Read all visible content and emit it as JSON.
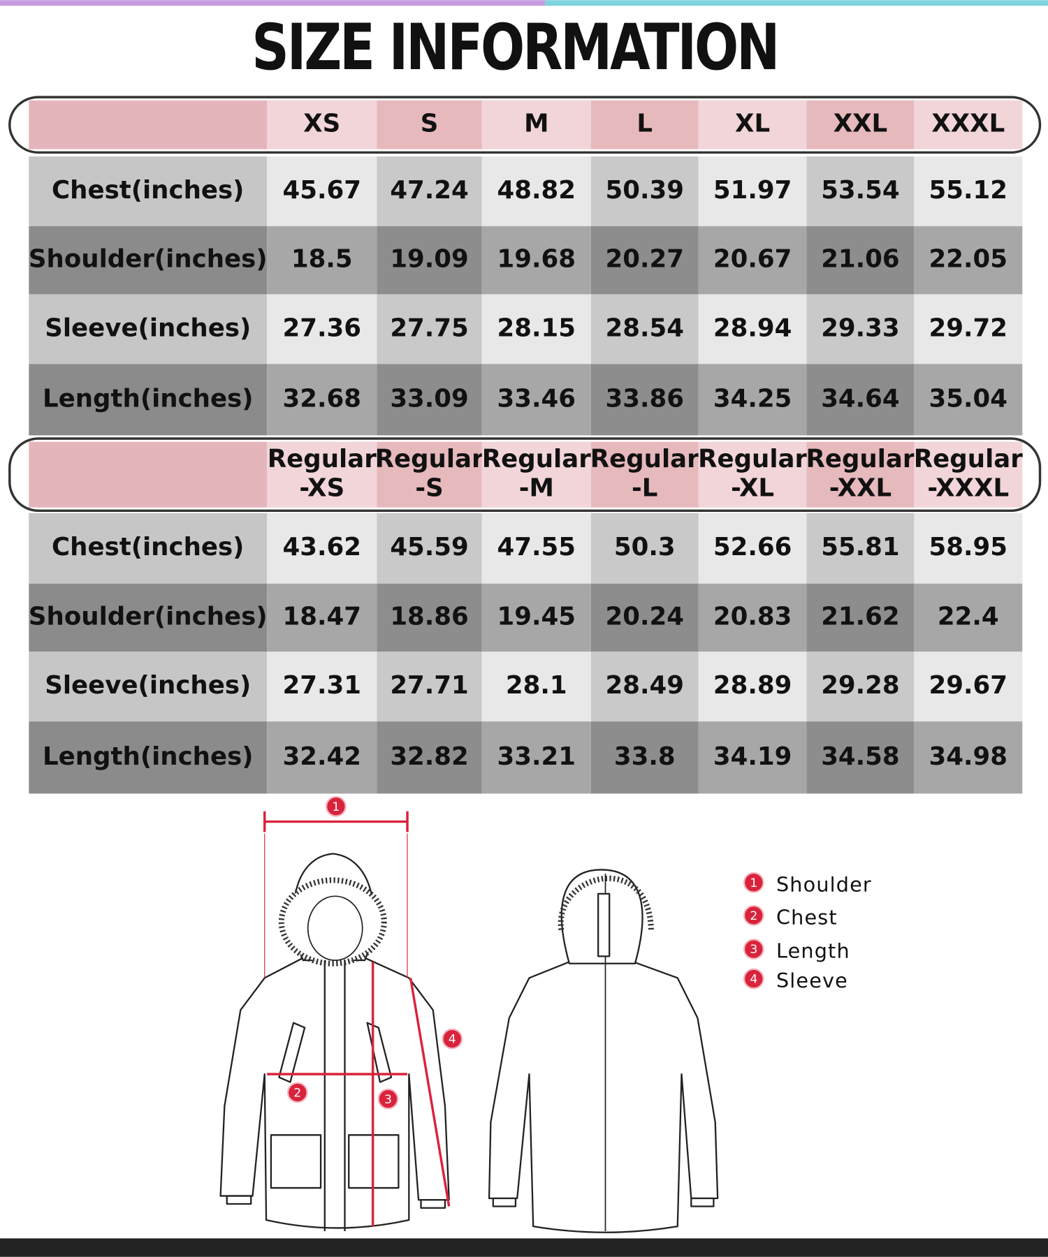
{
  "title": "SIZE INFORMATION",
  "tables": [
    {
      "header": [
        [
          "XS"
        ],
        [
          "S"
        ],
        [
          "M"
        ],
        [
          "L"
        ],
        [
          "XL"
        ],
        [
          "XXL"
        ],
        [
          "XXXL"
        ]
      ],
      "rows": [
        {
          "label": "Chest(inches)",
          "values": [
            45.67,
            47.24,
            48.82,
            50.39,
            51.97,
            53.54,
            55.12
          ]
        },
        {
          "label": "Shoulder(inches)",
          "values": [
            18.5,
            19.09,
            19.68,
            20.27,
            20.67,
            21.06,
            22.05
          ]
        },
        {
          "label": "Sleeve(inches)",
          "values": [
            27.36,
            27.75,
            28.15,
            28.54,
            28.94,
            29.33,
            29.72
          ]
        },
        {
          "label": "Length(inches)",
          "values": [
            32.68,
            33.09,
            33.46,
            33.86,
            34.25,
            34.64,
            35.04
          ]
        }
      ]
    },
    {
      "header": [
        [
          "Regular",
          "-XS"
        ],
        [
          "Regular",
          "-S"
        ],
        [
          "Regular",
          "-M"
        ],
        [
          "Regular",
          "-L"
        ],
        [
          "Regular",
          "-XL"
        ],
        [
          "Regular",
          "-XXL"
        ],
        [
          "Regular",
          "-XXXL"
        ]
      ],
      "rows": [
        {
          "label": "Chest(inches)",
          "values": [
            43.62,
            45.59,
            47.55,
            50.3,
            52.66,
            55.81,
            58.95
          ]
        },
        {
          "label": "Shoulder(inches)",
          "values": [
            18.47,
            18.86,
            19.45,
            20.24,
            20.83,
            21.62,
            22.4
          ]
        },
        {
          "label": "Sleeve(inches)",
          "values": [
            27.31,
            27.71,
            28.1,
            28.49,
            28.89,
            29.28,
            29.67
          ]
        },
        {
          "label": "Length(inches)",
          "values": [
            32.42,
            32.82,
            33.21,
            33.8,
            34.19,
            34.58,
            34.98
          ]
        }
      ]
    }
  ],
  "diagram_markers": [
    1,
    2,
    3,
    4
  ],
  "legend": [
    {
      "number": 1,
      "label": "Shoulder"
    },
    {
      "number": 2,
      "label": "Chest"
    },
    {
      "number": 3,
      "label": "Length"
    },
    {
      "number": 4,
      "label": "Sleeve"
    }
  ]
}
